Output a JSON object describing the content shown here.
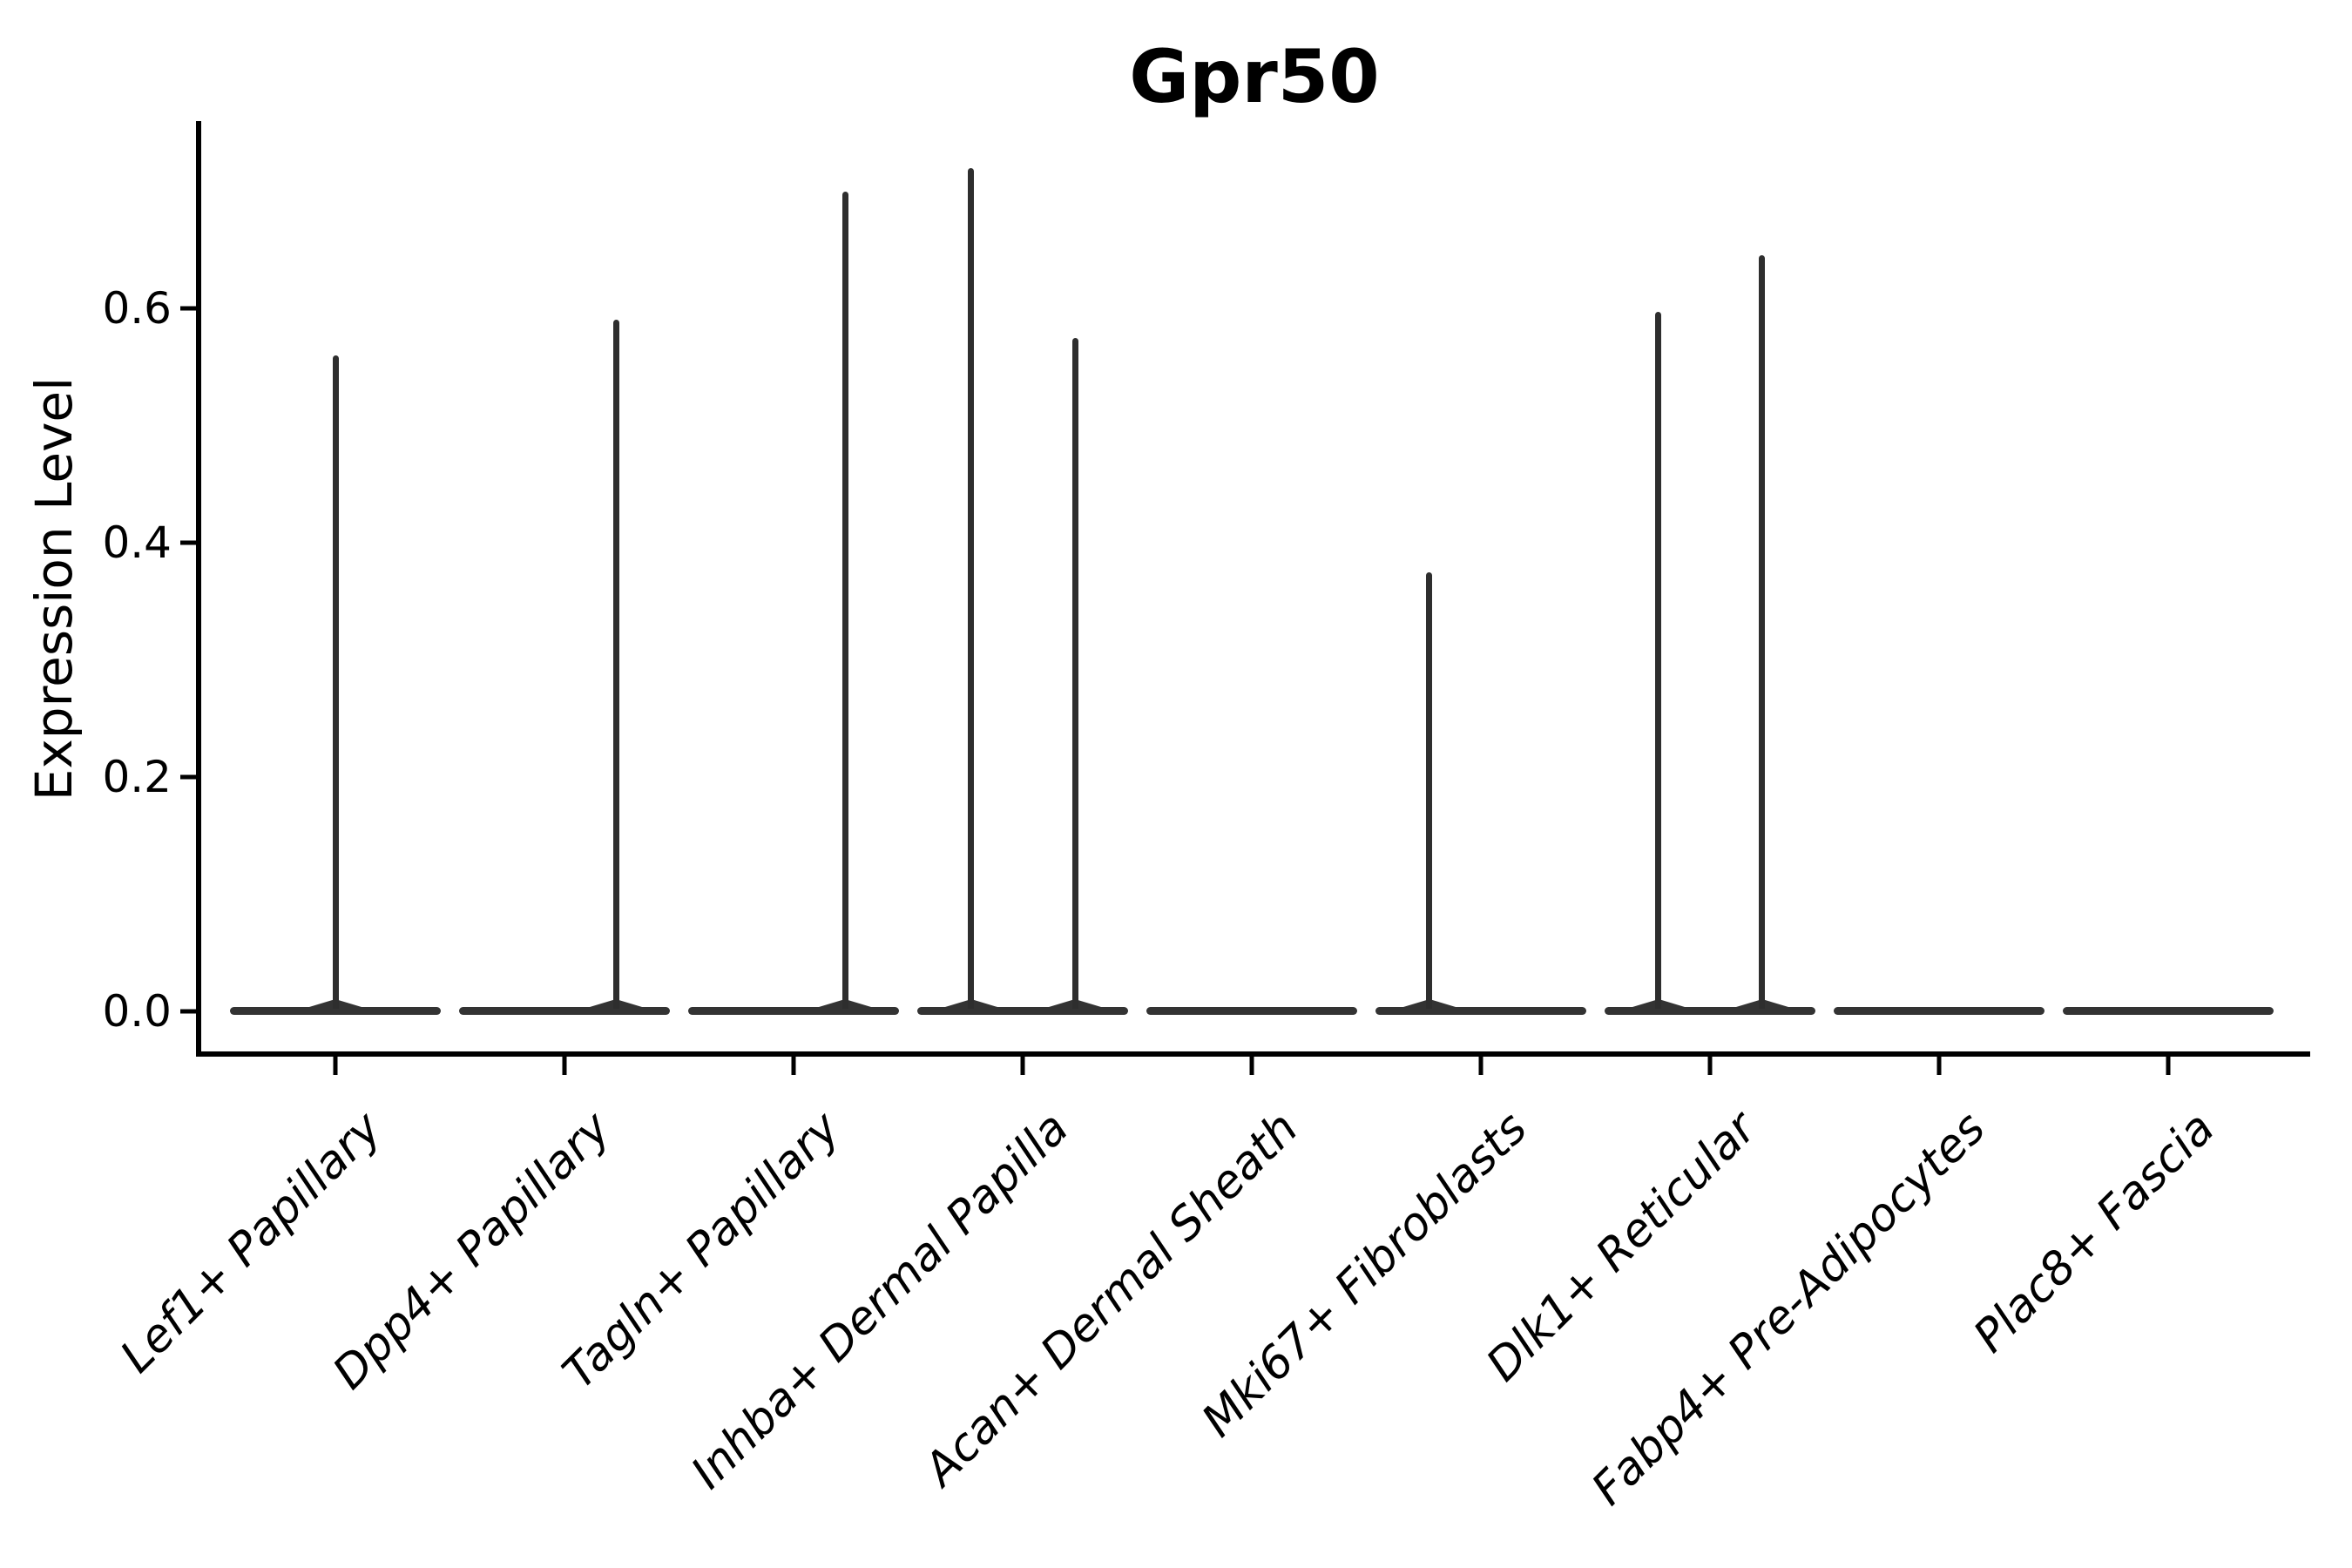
{
  "chart_data": {
    "type": "violin",
    "title": "Gpr50",
    "xlabel": "",
    "ylabel": "Expression Level",
    "ylim": [
      -0.035,
      0.76
    ],
    "yticks": [
      0.0,
      0.2,
      0.4,
      0.6
    ],
    "ytick_labels": [
      "0.0",
      "0.2",
      "0.4",
      "0.6"
    ],
    "grid": false,
    "legend_position": "none",
    "background_color": "#ffffff",
    "violin_color": "#333333",
    "axis_color": "#000000",
    "x_tick_label_style": "italic, rotated 45deg, right-anchored",
    "categories": [
      "Lef1+ Papillary",
      "Dpp4+ Papillary",
      "Tagln+ Papillary",
      "Inhba+ Dermal Papilla",
      "Acan+ Dermal Sheath",
      "Mki67+ Fibroblasts",
      "Dlk1+ Reticular",
      "Fabp4+ Pre-Adipocytes",
      "Plac8+ Fascia"
    ],
    "violins": [
      {
        "category": "Lef1+ Papillary",
        "zero_mass_base": true,
        "spikes": [
          {
            "offset": 0.0,
            "max": 0.56
          }
        ]
      },
      {
        "category": "Dpp4+ Papillary",
        "zero_mass_base": true,
        "spikes": [
          {
            "offset": 0.225,
            "max": 0.59
          }
        ]
      },
      {
        "category": "Tagln+ Papillary",
        "zero_mass_base": true,
        "spikes": [
          {
            "offset": 0.225,
            "max": 0.7
          }
        ]
      },
      {
        "category": "Inhba+ Dermal Papilla",
        "zero_mass_base": true,
        "spikes": [
          {
            "offset": -0.225,
            "max": 0.72
          },
          {
            "offset": 0.23,
            "max": 0.575
          }
        ]
      },
      {
        "category": "Acan+ Dermal Sheath",
        "zero_mass_base": true,
        "spikes": []
      },
      {
        "category": "Mki67+ Fibroblasts",
        "zero_mass_base": true,
        "spikes": [
          {
            "offset": -0.225,
            "max": 0.375
          }
        ]
      },
      {
        "category": "Dlk1+ Reticular",
        "zero_mass_base": true,
        "spikes": [
          {
            "offset": -0.225,
            "max": 0.597
          },
          {
            "offset": 0.228,
            "max": 0.645
          }
        ]
      },
      {
        "category": "Fabp4+ Pre-Adipocytes",
        "zero_mass_base": true,
        "spikes": []
      },
      {
        "category": "Plac8+ Fascia",
        "zero_mass_base": true,
        "spikes": []
      }
    ]
  }
}
